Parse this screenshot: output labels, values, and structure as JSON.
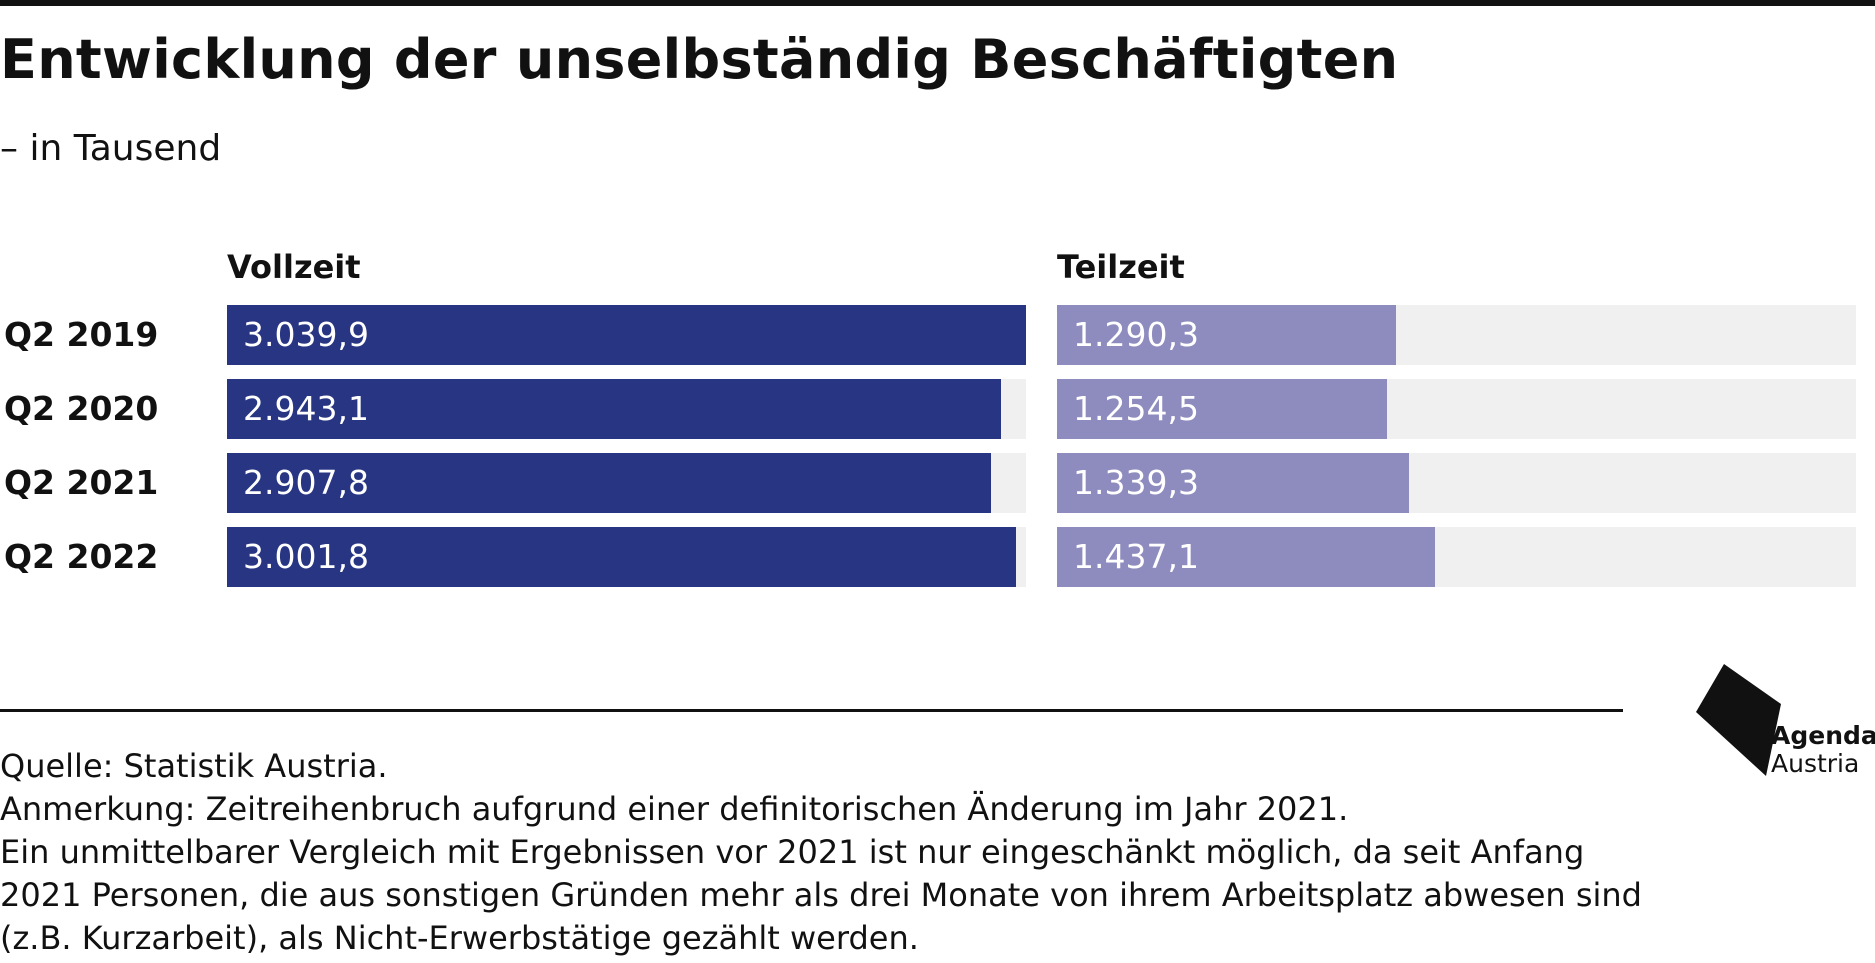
{
  "title": "Entwicklung der unselbständig Beschäftigten",
  "subtitle": "– in Tausend",
  "panels": {
    "left_label": "Vollzeit",
    "right_label": "Teilzeit"
  },
  "colors": {
    "vollzeit": "#283583",
    "teilzeit": "#8e8cbf",
    "track": "#f0f0f0"
  },
  "chart_data": {
    "type": "bar",
    "orientation": "horizontal",
    "categories": [
      "Q2 2019",
      "Q2 2020",
      "Q2 2021",
      "Q2 2022"
    ],
    "series": [
      {
        "name": "Vollzeit",
        "values": [
          3039.9,
          2943.1,
          2907.8,
          3001.8
        ],
        "labels": [
          "3.039,9",
          "2.943,1",
          "2.907,8",
          "3.001,8"
        ]
      },
      {
        "name": "Teilzeit",
        "values": [
          1290.3,
          1254.5,
          1339.3,
          1437.1
        ],
        "labels": [
          "1.290,3",
          "1.254,5",
          "1.339,3",
          "1.437,1"
        ]
      }
    ],
    "xlim": [
      0,
      3039.9
    ],
    "grid": false
  },
  "footer": {
    "source": "Quelle: Statistik Austria.",
    "note_1": "Anmerkung: Zeitreihenbruch aufgrund einer definitorischen Änderung im Jahr 2021.",
    "note_2": "Ein unmittelbarer Vergleich mit Ergebnissen vor 2021 ist nur eingeschänkt möglich, da seit Anfang",
    "note_3": "2021 Personen, die aus sonstigen Gründen mehr als drei Monate von ihrem Arbeitsplatz abwesen sind",
    "note_4": "(z.B. Kurzarbeit), als Nicht-Erwerbstätige gezählt werden."
  },
  "logo": {
    "line1": "Agenda",
    "line2": "Austria"
  }
}
